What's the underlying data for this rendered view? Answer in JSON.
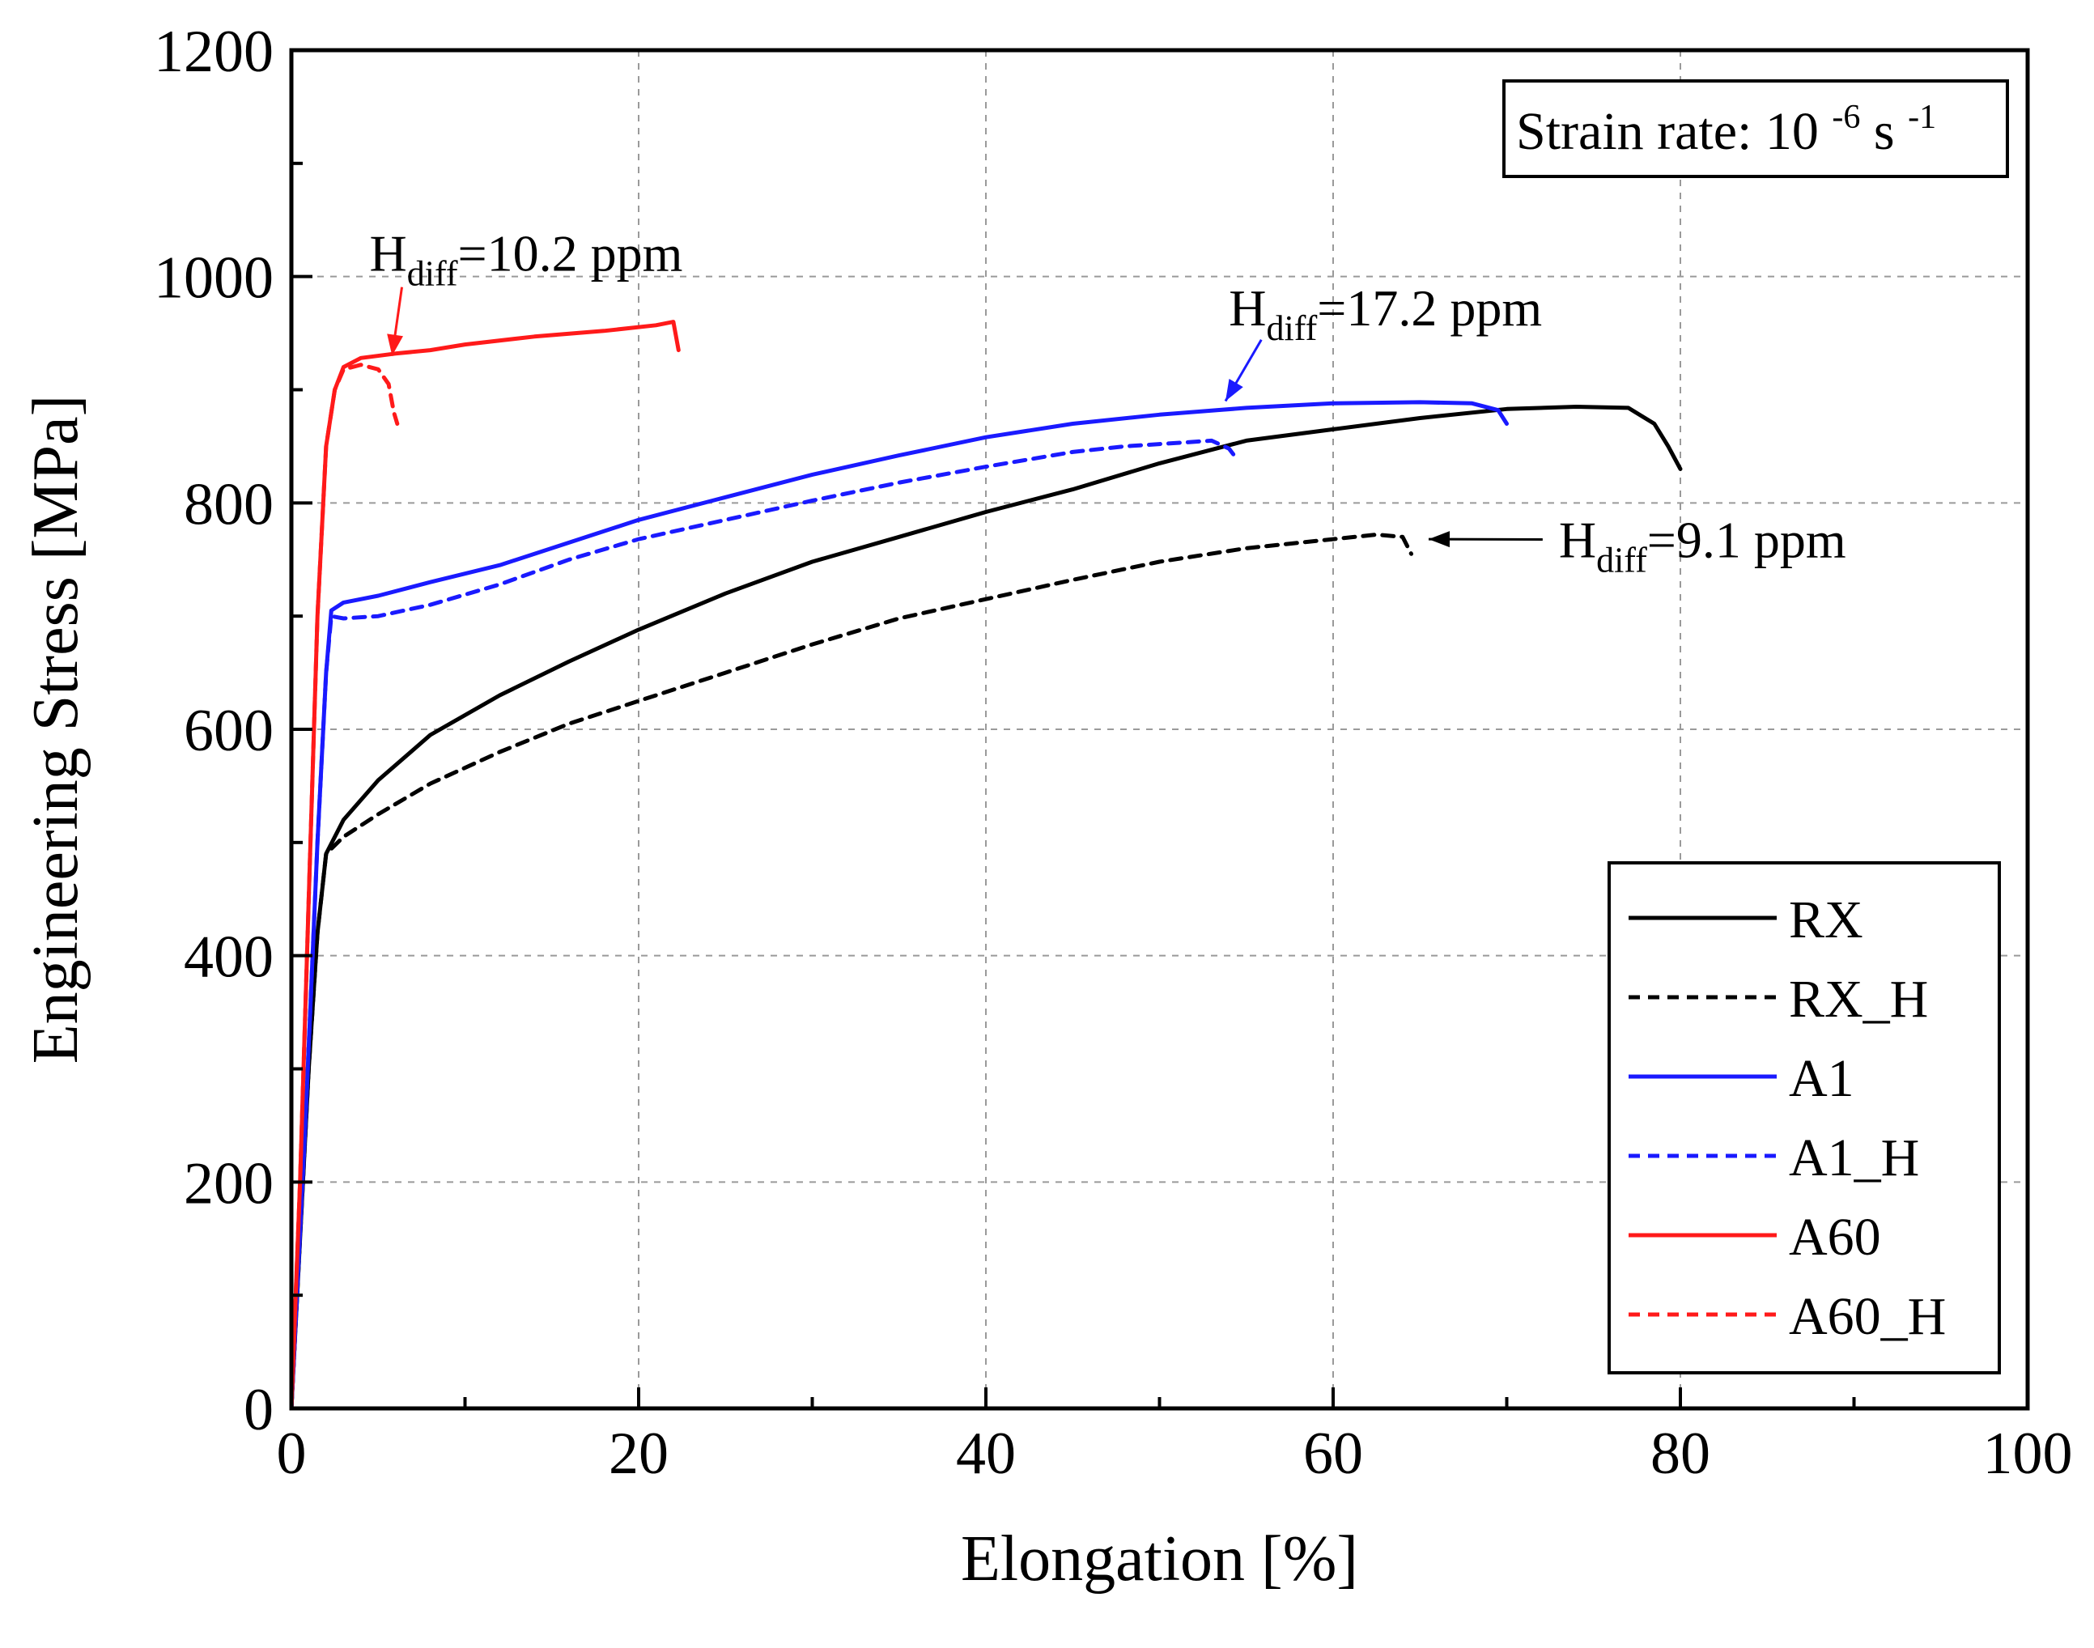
{
  "chart_data": {
    "type": "line",
    "title": "",
    "xlabel": "Elongation [%]",
    "ylabel": "Engineering Stress [MPa]",
    "xlim": [
      0,
      100
    ],
    "ylim": [
      0,
      1200
    ],
    "xticks": [
      0,
      20,
      40,
      60,
      80,
      100
    ],
    "yticks": [
      0,
      200,
      400,
      600,
      800,
      1000,
      1200
    ],
    "grid": true,
    "legend_position": "bottom-right",
    "info_box": {
      "prefix": "Strain rate: 10",
      "exp1": "-6",
      "mid": " s",
      "exp2": "-1"
    },
    "series": [
      {
        "name": "RX",
        "color": "#000000",
        "dash": "solid",
        "x": [
          0,
          0.5,
          1,
          1.5,
          2,
          3,
          5,
          8,
          12,
          16,
          20,
          25,
          30,
          35,
          40,
          45,
          50,
          55,
          60,
          65,
          70,
          74,
          77,
          78.5,
          79.3,
          80
        ],
        "y": [
          0,
          150,
          300,
          420,
          490,
          520,
          555,
          595,
          630,
          660,
          688,
          720,
          748,
          770,
          792,
          812,
          835,
          855,
          865,
          875,
          883,
          885,
          884,
          870,
          850,
          830
        ]
      },
      {
        "name": "RX_H",
        "color": "#000000",
        "dash": "dashed",
        "x": [
          0,
          0.5,
          1,
          1.5,
          2,
          3,
          5,
          8,
          12,
          16,
          20,
          25,
          30,
          35,
          40,
          45,
          50,
          55,
          60,
          62.5,
          64,
          64.5
        ],
        "y": [
          0,
          150,
          300,
          420,
          490,
          505,
          525,
          552,
          580,
          605,
          625,
          650,
          675,
          698,
          715,
          732,
          748,
          760,
          768,
          772,
          770,
          755
        ]
      },
      {
        "name": "A1",
        "color": "#1a1aff",
        "dash": "solid",
        "x": [
          0,
          0.8,
          1.5,
          2,
          2.3,
          3,
          5,
          8,
          12,
          16,
          20,
          25,
          30,
          35,
          40,
          45,
          50,
          55,
          60,
          65,
          68,
          69.5,
          70
        ],
        "y": [
          0,
          250,
          500,
          650,
          705,
          712,
          718,
          730,
          745,
          765,
          785,
          805,
          825,
          842,
          858,
          870,
          878,
          884,
          888,
          889,
          888,
          882,
          870
        ]
      },
      {
        "name": "A1_H",
        "color": "#1a1aff",
        "dash": "dashed",
        "x": [
          0,
          0.8,
          1.5,
          2,
          2.3,
          3,
          5,
          8,
          12,
          16,
          20,
          25,
          30,
          35,
          40,
          45,
          48,
          50,
          53,
          54,
          54.5
        ],
        "y": [
          0,
          250,
          500,
          650,
          700,
          698,
          700,
          710,
          728,
          750,
          768,
          785,
          802,
          818,
          832,
          845,
          850,
          852,
          855,
          848,
          838
        ]
      },
      {
        "name": "A60",
        "color": "#ff1a1a",
        "dash": "solid",
        "x": [
          0,
          0.5,
          1,
          1.5,
          2,
          2.5,
          3,
          4,
          6,
          8,
          10,
          14,
          18,
          21,
          22,
          22.3
        ],
        "y": [
          0,
          200,
          450,
          700,
          850,
          900,
          920,
          928,
          932,
          935,
          940,
          947,
          952,
          957,
          960,
          935
        ]
      },
      {
        "name": "A60_H",
        "color": "#ff1a1a",
        "dash": "dashed",
        "x": [
          0,
          0.5,
          1,
          1.5,
          2,
          2.5,
          3,
          4,
          5,
          5.6,
          5.9,
          6.1
        ],
        "y": [
          0,
          200,
          450,
          700,
          850,
          900,
          918,
          922,
          918,
          905,
          880,
          870
        ]
      }
    ],
    "annotations": [
      {
        "main": "H",
        "sub": "diff",
        "rest": "=10.2 ppm",
        "color": "#ff1a1a",
        "x": 4.5,
        "y": 1005,
        "arrow_to": [
          5.8,
          930
        ]
      },
      {
        "main": "H",
        "sub": "diff",
        "rest": "=17.2 ppm",
        "color": "#1a1aff",
        "x": 54,
        "y": 957,
        "arrow_to": [
          53.8,
          890
        ]
      },
      {
        "main": "H",
        "sub": "diff",
        "rest": "=9.1 ppm",
        "color": "#000000",
        "x": 73,
        "y": 752,
        "arrow_to": [
          65.5,
          768
        ]
      }
    ]
  }
}
